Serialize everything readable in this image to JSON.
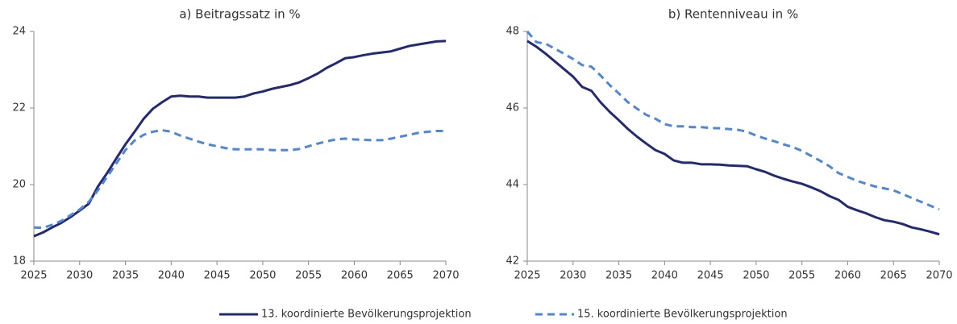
{
  "chart_data": [
    {
      "type": "line",
      "title": "a) Beitragssatz in %",
      "x": [
        2025,
        2026,
        2027,
        2028,
        2029,
        2030,
        2031,
        2032,
        2033,
        2034,
        2035,
        2036,
        2037,
        2038,
        2039,
        2040,
        2041,
        2042,
        2043,
        2044,
        2045,
        2046,
        2047,
        2048,
        2049,
        2050,
        2051,
        2052,
        2053,
        2054,
        2055,
        2056,
        2057,
        2058,
        2059,
        2060,
        2061,
        2062,
        2063,
        2064,
        2065,
        2066,
        2067,
        2068,
        2069,
        2070
      ],
      "xlim": [
        2025,
        2070
      ],
      "xticks": [
        2025,
        2030,
        2035,
        2040,
        2045,
        2050,
        2055,
        2060,
        2065,
        2070
      ],
      "ylim": [
        18,
        24
      ],
      "yticks": [
        18,
        20,
        22,
        24
      ],
      "series": [
        {
          "name": "13. koordinierte Bevölkerungsprojektion",
          "color": "#232a73",
          "dash": false,
          "values": [
            18.65,
            18.75,
            18.88,
            19.0,
            19.15,
            19.32,
            19.5,
            19.95,
            20.3,
            20.68,
            21.05,
            21.38,
            21.72,
            21.98,
            22.15,
            22.3,
            22.32,
            22.3,
            22.3,
            22.27,
            22.27,
            22.27,
            22.27,
            22.3,
            22.38,
            22.43,
            22.5,
            22.55,
            22.6,
            22.67,
            22.78,
            22.9,
            23.05,
            23.17,
            23.3,
            23.33,
            23.38,
            23.42,
            23.45,
            23.48,
            23.55,
            23.62,
            23.66,
            23.7,
            23.74,
            23.75
          ]
        },
        {
          "name": "15. koordinierte Bevölkerungsprojektion",
          "color": "#4f86d6",
          "dash": true,
          "values": [
            18.88,
            18.87,
            18.95,
            19.05,
            19.2,
            19.35,
            19.55,
            19.85,
            20.2,
            20.55,
            20.9,
            21.15,
            21.3,
            21.38,
            21.42,
            21.38,
            21.28,
            21.2,
            21.12,
            21.05,
            21.0,
            20.95,
            20.92,
            20.92,
            20.92,
            20.92,
            20.9,
            20.9,
            20.9,
            20.93,
            21.0,
            21.07,
            21.13,
            21.18,
            21.2,
            21.18,
            21.17,
            21.16,
            21.16,
            21.2,
            21.25,
            21.3,
            21.35,
            21.38,
            21.4,
            21.4
          ]
        }
      ]
    },
    {
      "type": "line",
      "title": "b) Rentenniveau in %",
      "x": [
        2025,
        2026,
        2027,
        2028,
        2029,
        2030,
        2031,
        2032,
        2033,
        2034,
        2035,
        2036,
        2037,
        2038,
        2039,
        2040,
        2041,
        2042,
        2043,
        2044,
        2045,
        2046,
        2047,
        2048,
        2049,
        2050,
        2051,
        2052,
        2053,
        2054,
        2055,
        2056,
        2057,
        2058,
        2059,
        2060,
        2061,
        2062,
        2063,
        2064,
        2065,
        2066,
        2067,
        2068,
        2069,
        2070
      ],
      "xlim": [
        2025,
        2070
      ],
      "xticks": [
        2025,
        2030,
        2035,
        2040,
        2045,
        2050,
        2055,
        2060,
        2065,
        2070
      ],
      "ylim": [
        42,
        48
      ],
      "yticks": [
        42,
        44,
        46,
        48
      ],
      "series": [
        {
          "name": "13. koordinierte Bevölkerungsprojektion",
          "color": "#232a73",
          "dash": false,
          "values": [
            47.75,
            47.6,
            47.42,
            47.22,
            47.02,
            46.82,
            46.55,
            46.45,
            46.15,
            45.9,
            45.68,
            45.45,
            45.25,
            45.07,
            44.9,
            44.8,
            44.63,
            44.57,
            44.57,
            44.53,
            44.53,
            44.52,
            44.5,
            44.49,
            44.48,
            44.4,
            44.33,
            44.23,
            44.15,
            44.08,
            44.02,
            43.93,
            43.83,
            43.7,
            43.6,
            43.42,
            43.33,
            43.25,
            43.15,
            43.07,
            43.03,
            42.97,
            42.88,
            42.83,
            42.77,
            42.7
          ]
        },
        {
          "name": "15. koordinierte Bevölkerungsprojektion",
          "color": "#4f86d6",
          "dash": true,
          "values": [
            48.0,
            47.72,
            47.68,
            47.55,
            47.42,
            47.28,
            47.12,
            47.08,
            46.85,
            46.6,
            46.38,
            46.15,
            45.98,
            45.82,
            45.72,
            45.58,
            45.52,
            45.52,
            45.5,
            45.5,
            45.48,
            45.47,
            45.45,
            45.43,
            45.38,
            45.28,
            45.2,
            45.13,
            45.05,
            44.98,
            44.88,
            44.75,
            44.62,
            44.48,
            44.3,
            44.2,
            44.1,
            44.02,
            43.95,
            43.9,
            43.85,
            43.75,
            43.65,
            43.55,
            43.45,
            43.35
          ]
        }
      ]
    }
  ]
}
